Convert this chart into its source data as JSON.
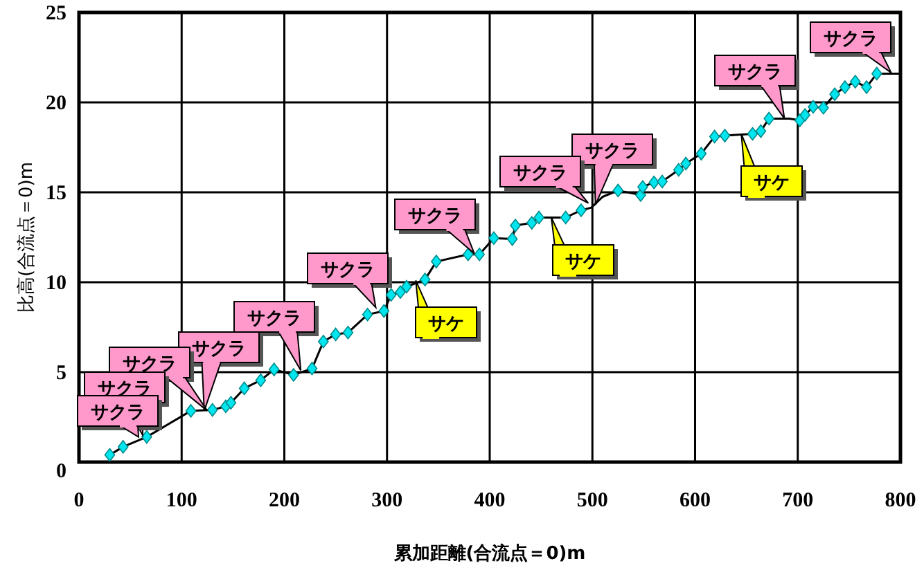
{
  "chart_data": {
    "type": "line",
    "xlabel": "累加距離(合流点＝0)m",
    "ylabel": "比高(合流点＝0)m",
    "xlim": [
      0,
      800
    ],
    "xticks": [
      0,
      100,
      200,
      300,
      400,
      500,
      600,
      700,
      800
    ],
    "ylim": [
      0,
      25
    ],
    "yticks": [
      0,
      5,
      10,
      15,
      20,
      25
    ],
    "grid": true,
    "series": [
      {
        "color": "#000000",
        "marker": "none",
        "x": [
          30,
          43,
          66,
          109,
          130,
          143,
          148,
          161,
          177,
          190,
          209,
          227,
          238,
          250,
          262,
          281,
          297,
          304,
          313,
          319,
          337,
          348,
          379,
          390,
          404,
          422,
          425,
          441,
          448,
          474,
          489,
          499,
          510,
          525,
          547,
          549,
          560,
          568,
          584,
          591,
          606,
          619,
          629,
          656,
          664,
          672,
          692,
          702,
          707,
          715,
          725,
          736,
          746,
          756,
          767,
          777,
          798
        ],
        "values": [
          0.4,
          0.85,
          1.4,
          2.85,
          2.9,
          3.1,
          3.3,
          4.1,
          4.55,
          5.15,
          4.85,
          5.2,
          6.7,
          7.1,
          7.2,
          8.2,
          8.4,
          9.3,
          9.45,
          9.75,
          10.15,
          11.15,
          11.55,
          11.55,
          12.45,
          12.4,
          13.15,
          13.3,
          13.6,
          13.6,
          14.0,
          14.15,
          14.75,
          15.1,
          14.85,
          15.3,
          15.55,
          15.6,
          16.25,
          16.6,
          17.15,
          18.1,
          18.15,
          18.25,
          18.4,
          19.1,
          19.1,
          19.0,
          19.3,
          19.75,
          19.7,
          20.45,
          20.85,
          21.15,
          20.85,
          21.6,
          21.6
        ]
      },
      {
        "type": "scatter",
        "color": "#00e5ee",
        "marker": "diamond",
        "x": [
          30,
          43,
          66,
          109,
          130,
          143,
          148,
          161,
          177,
          190,
          209,
          227,
          238,
          250,
          262,
          281,
          297,
          304,
          313,
          319,
          337,
          348,
          379,
          390,
          404,
          422,
          425,
          441,
          448,
          474,
          489,
          525,
          547,
          549,
          560,
          568,
          584,
          591,
          606,
          619,
          629,
          656,
          664,
          672,
          702,
          707,
          715,
          725,
          736,
          746,
          756,
          767,
          777
        ],
        "values": [
          0.4,
          0.85,
          1.4,
          2.85,
          2.9,
          3.1,
          3.3,
          4.1,
          4.55,
          5.15,
          4.85,
          5.2,
          6.7,
          7.1,
          7.2,
          8.2,
          8.4,
          9.3,
          9.45,
          9.75,
          10.15,
          11.15,
          11.55,
          11.55,
          12.45,
          12.4,
          13.15,
          13.3,
          13.6,
          13.6,
          14.0,
          15.1,
          14.85,
          15.3,
          15.55,
          15.6,
          16.25,
          16.6,
          17.15,
          18.1,
          18.15,
          18.25,
          18.4,
          19.1,
          19.0,
          19.3,
          19.75,
          19.7,
          20.45,
          20.85,
          21.15,
          20.85,
          21.6
        ]
      }
    ],
    "annotations": [
      {
        "text": "サクラ",
        "x": 58,
        "y": 1.4
      },
      {
        "text": "サクラ",
        "x": 62,
        "y": 1.5
      },
      {
        "text": "サクラ",
        "x": 125,
        "y": 2.85
      },
      {
        "text": "サクラ",
        "x": 122,
        "y": 2.85
      },
      {
        "text": "サクラ",
        "x": 216,
        "y": 5.1
      },
      {
        "text": "サクラ",
        "x": 289,
        "y": 8.6
      },
      {
        "text": "サケ",
        "x": 328,
        "y": 10.1
      },
      {
        "text": "サクラ",
        "x": 385,
        "y": 11.6
      },
      {
        "text": "サクラ",
        "x": 496,
        "y": 14.4
      },
      {
        "text": "サクラ",
        "x": 503,
        "y": 14.3
      },
      {
        "text": "サケ",
        "x": 460,
        "y": 13.6
      },
      {
        "text": "サクラ",
        "x": 687,
        "y": 19.1
      },
      {
        "text": "サケ",
        "x": 645,
        "y": 18.25
      },
      {
        "text": "サクラ",
        "x": 791,
        "y": 21.65
      }
    ]
  }
}
